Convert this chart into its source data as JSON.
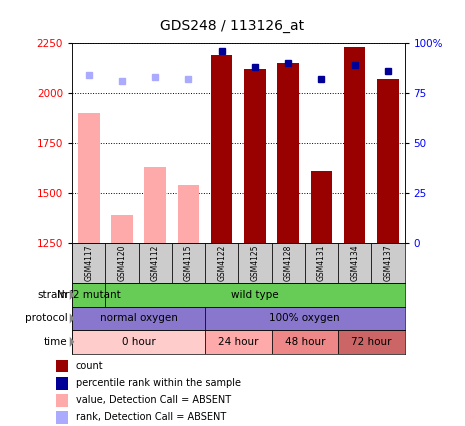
{
  "title": "GDS248 / 113126_at",
  "samples": [
    "GSM4117",
    "GSM4120",
    "GSM4112",
    "GSM4115",
    "GSM4122",
    "GSM4125",
    "GSM4128",
    "GSM4131",
    "GSM4134",
    "GSM4137"
  ],
  "count_values": [
    1900,
    1390,
    1630,
    1540,
    2190,
    2120,
    2150,
    1610,
    2230,
    2070
  ],
  "count_absent": [
    true,
    true,
    true,
    true,
    false,
    false,
    false,
    false,
    false,
    false
  ],
  "rank_values": [
    84,
    81,
    83,
    82,
    96,
    88,
    90,
    82,
    89,
    86
  ],
  "rank_absent": [
    true,
    true,
    true,
    true,
    false,
    false,
    false,
    false,
    false,
    false
  ],
  "ylim_left": [
    1250,
    2250
  ],
  "ylim_right": [
    0,
    100
  ],
  "yticks_left": [
    1250,
    1500,
    1750,
    2000,
    2250
  ],
  "yticks_right": [
    0,
    25,
    50,
    75,
    100
  ],
  "ytick_labels_right": [
    "0",
    "25",
    "50",
    "75",
    "100%"
  ],
  "bar_color_present": "#990000",
  "bar_color_absent": "#ffaaaa",
  "rank_color_present": "#000099",
  "rank_color_absent": "#aaaaff",
  "strain_color": "#66cc55",
  "protocol_color": "#8877cc",
  "time_colors": [
    "#ffcccc",
    "#ffaaaa",
    "#ee8888",
    "#cc6666"
  ],
  "time_data": [
    {
      "label": "0 hour",
      "start": 0,
      "end": 4
    },
    {
      "label": "24 hour",
      "start": 4,
      "end": 6
    },
    {
      "label": "48 hour",
      "start": 6,
      "end": 8
    },
    {
      "label": "72 hour",
      "start": 8,
      "end": 10
    }
  ],
  "legend_items": [
    {
      "color": "#990000",
      "label": "count"
    },
    {
      "color": "#000099",
      "label": "percentile rank within the sample"
    },
    {
      "color": "#ffaaaa",
      "label": "value, Detection Call = ABSENT"
    },
    {
      "color": "#aaaaff",
      "label": "rank, Detection Call = ABSENT"
    }
  ],
  "bar_width": 0.65
}
